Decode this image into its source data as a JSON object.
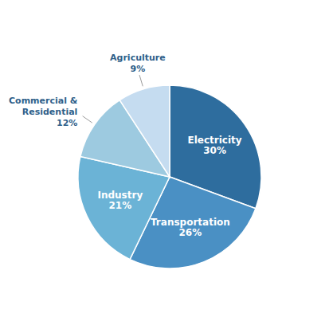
{
  "chart_data": {
    "type": "pie",
    "categories": [
      "Electricity",
      "Transportation",
      "Industry",
      "Commercial &\nResidential",
      "Agriculture"
    ],
    "values": [
      30,
      26,
      21,
      12,
      9
    ],
    "value_labels": [
      "30%",
      "26%",
      "21%",
      "12%",
      "9%"
    ],
    "colors": [
      "#2E6D9E",
      "#4A90C4",
      "#6BB3D6",
      "#9DCAE0",
      "#C5DCF0"
    ],
    "data_labels": true
  }
}
